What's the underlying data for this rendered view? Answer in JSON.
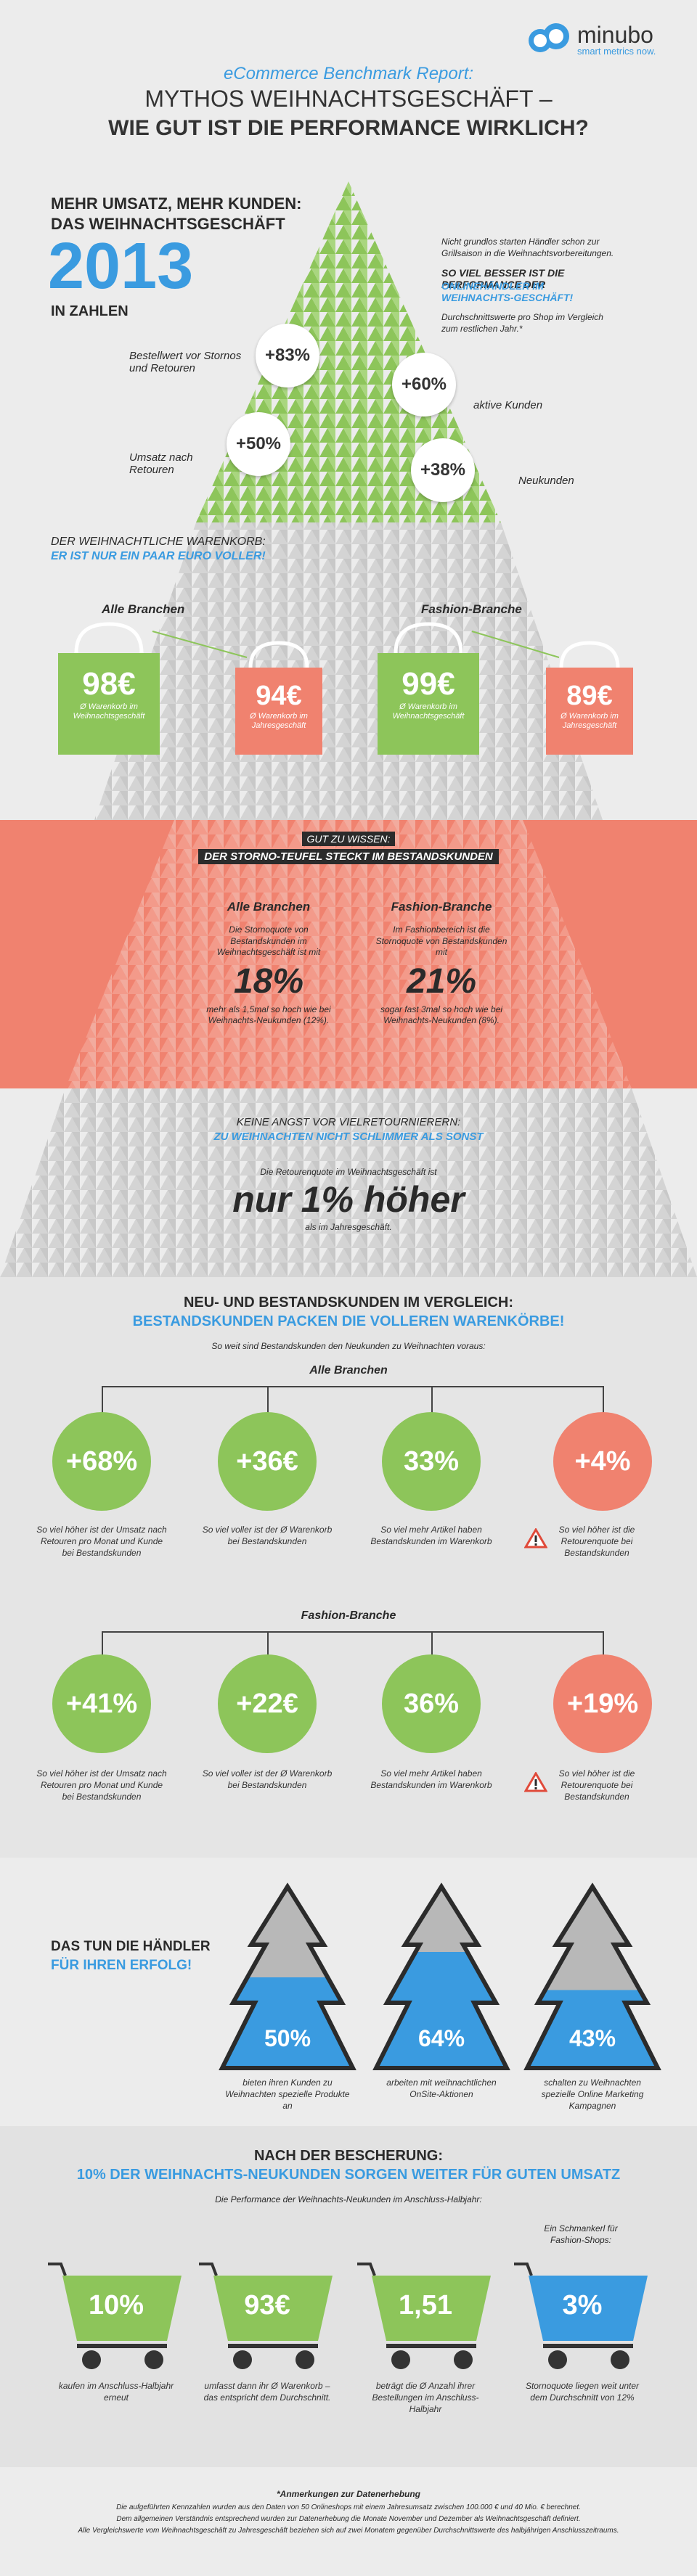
{
  "brand": {
    "name": "minubo",
    "tagline": "smart metrics now."
  },
  "header": {
    "report": "eCommerce Benchmark Report:",
    "title_line1": "MYTHOS WEIHNACHTSGESCHÄFT –",
    "title_line2": "WIE GUT IST DIE PERFORMANCE WIRKLICH?"
  },
  "intro": {
    "kicker1": "MEHR UMSATZ, MEHR KUNDEN:",
    "kicker2": "DAS WEIHNACHTSGESCHÄFT",
    "year": "2013",
    "in_zahlen": "IN ZAHLEN",
    "right_text1": "Nicht grundlos starten Händler schon zur Grillsaison in die Weihnachtsvorbereitungen.",
    "right_head1": "SO VIEL BESSER IST DIE PERFORMANCE DER",
    "right_head2": "ONLINEHÄNDLER IM WEIHNACHTS-GESCHÄFT!",
    "right_text2": "Durchschnittswerte pro Shop im Vergleich zum restlichen Jahr.*"
  },
  "tree_stats": [
    {
      "value": "+83%",
      "label": "Bestellwert vor Stornos und Retouren"
    },
    {
      "value": "+60%",
      "label": "aktive Kunden"
    },
    {
      "value": "+50%",
      "label": "Umsatz nach Retouren"
    },
    {
      "value": "+38%",
      "label": "Neukunden"
    }
  ],
  "warenkorb": {
    "head1": "DER WEIHNACHTLICHE WARENKORB:",
    "head2": "ER IST NUR EIN PAAR EURO VOLLER!",
    "groups": [
      {
        "name": "Alle Branchen",
        "xmas": "98€",
        "xmas_label": "Ø Warenkorb im Weihnachtsgeschäft",
        "year": "94€",
        "year_label": "Ø Warenkorb im Jahresgeschäft"
      },
      {
        "name": "Fashion-Branche",
        "xmas": "99€",
        "xmas_label": "Ø Warenkorb im Weihnachtsgeschäft",
        "year": "89€",
        "year_label": "Ø Warenkorb im Jahresgeschäft"
      }
    ]
  },
  "storno": {
    "head1": "GUT ZU WISSEN:",
    "head2": "DER STORNO-TEUFEL STECKT IM BESTANDSKUNDEN",
    "cols": [
      {
        "name": "Alle Branchen",
        "text1": "Die Stornoquote von Bestandskunden im Weihnachtsgeschäft ist mit",
        "value": "18%",
        "text2": "mehr als 1,5mal so hoch wie bei Weihnachts-Neukunden (12%)."
      },
      {
        "name": "Fashion-Branche",
        "text1": "Im Fashionbereich ist die Stornoquote von Bestandskunden mit",
        "value": "21%",
        "text2": "sogar fast 3mal so hoch wie bei Weihnachts-Neukunden (8%)."
      }
    ]
  },
  "retoure": {
    "head1": "KEINE ANGST VOR VIELRETOURNIERERN:",
    "head2": "ZU WEIHNACHTEN NICHT SCHLIMMER ALS SONST",
    "text1": "Die Retourenquote im Weihnachtsgeschäft ist",
    "big": "nur 1% höher",
    "text2": "als im Jahresgeschäft."
  },
  "vergleich": {
    "head1": "NEU- UND BESTANDSKUNDEN IM VERGLEICH:",
    "head2": "BESTANDSKUNDEN PACKEN DIE VOLLEREN WARENKÖRBE!",
    "sub": "So weit sind Bestandskunden den Neukunden zu Weihnachten voraus:",
    "groups": [
      {
        "name": "Alle Branchen",
        "items": [
          {
            "value": "+68%",
            "label": "So viel höher ist der Umsatz nach Retouren pro Monat und Kunde bei Bestandskunden"
          },
          {
            "value": "+36€",
            "label": "So viel voller ist der Ø Warenkorb bei Bestandskunden"
          },
          {
            "value": "33%",
            "label": "So viel mehr Artikel haben Bestandskunden im Warenkorb"
          },
          {
            "value": "+4%",
            "label": "So viel höher ist die Retourenquote bei Bestandskunden"
          }
        ]
      },
      {
        "name": "Fashion-Branche",
        "items": [
          {
            "value": "+41%",
            "label": "So viel höher ist der Umsatz nach Retouren pro Monat und Kunde bei Bestandskunden"
          },
          {
            "value": "+22€",
            "label": "So viel voller ist der Ø Warenkorb bei Bestandskunden"
          },
          {
            "value": "36%",
            "label": "So viel mehr Artikel haben Bestandskunden im Warenkorb"
          },
          {
            "value": "+19%",
            "label": "So viel höher ist die Retourenquote bei Bestandskunden"
          }
        ]
      }
    ]
  },
  "haendler": {
    "head1": "DAS TUN DIE HÄNDLER",
    "head2": "FÜR IHREN ERFOLG!",
    "trees": [
      {
        "value": "50%",
        "fill": 0.5,
        "label": "bieten ihren Kunden zu Weihnachten spezielle Produkte an"
      },
      {
        "value": "64%",
        "fill": 0.64,
        "label": "arbeiten mit weihnachtlichen OnSite-Aktionen"
      },
      {
        "value": "43%",
        "fill": 0.43,
        "label": "schalten zu Weihnachten spezielle Online Marketing Kampagnen"
      }
    ]
  },
  "bescherung": {
    "head1": "NACH DER BESCHERUNG:",
    "head2": "10% DER WEIHNACHTS-NEUKUNDEN SORGEN WEITER FÜR GUTEN UMSATZ",
    "sub": "Die Performance der Weihnachts-Neukunden im Anschluss-Halbjahr:",
    "schmankerl": "Ein Schmankerl für Fashion-Shops:",
    "carts": [
      {
        "value": "10%",
        "label": "kaufen im Anschluss-Halbjahr erneut"
      },
      {
        "value": "93€",
        "label": "umfasst dann ihr Ø Warenkorb – das entspricht dem Durchschnitt."
      },
      {
        "value": "1,51",
        "label": "beträgt die Ø Anzahl ihrer Bestellungen im Anschluss-Halbjahr"
      },
      {
        "value": "3%",
        "label": "Stornoquote liegen weit unter dem Durchschnitt von 12%"
      }
    ]
  },
  "footer": {
    "title": "*Anmerkungen zur Datenerhebung",
    "line1": "Die aufgeführten Kennzahlen wurden aus den Daten von 50 Onlineshops mit einem Jahresumsatz zwischen 100.000 € und 40 Mio. € berechnet.",
    "line2": "Dem allgemeinen Verständnis entsprechend wurden zur Datenerhebung die Monate November und Dezember als Weihnachtsgeschäft definiert.",
    "line3": "Alle Vergleichswerte vom Weihnachtsgeschäft zu Jahresgeschäft beziehen sich auf zwei Monatem gegenüber Durchschnittswerte des halbjährigen Anschlusszeitraums."
  },
  "colors": {
    "green": "#8dc55a",
    "red": "#f0826f",
    "blue": "#3a9be0",
    "grey": "#c8c8c8"
  }
}
